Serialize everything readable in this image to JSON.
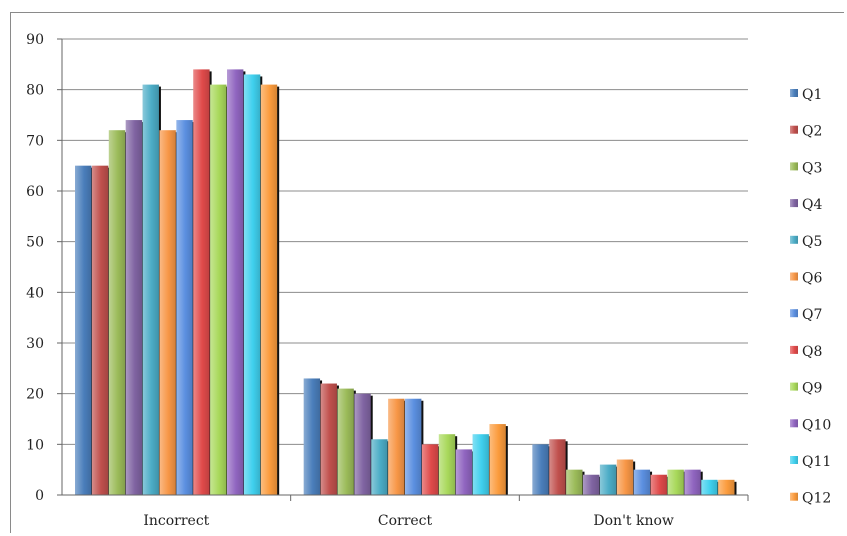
{
  "chart_data": {
    "type": "bar",
    "categories": [
      "Incorrect",
      "Correct",
      "Don't know"
    ],
    "series": [
      {
        "name": "Q1",
        "color": "#4a7ebb",
        "values": [
          65,
          23,
          10
        ]
      },
      {
        "name": "Q2",
        "color": "#c0504d",
        "values": [
          65,
          22,
          11
        ]
      },
      {
        "name": "Q3",
        "color": "#9bbb59",
        "values": [
          72,
          21,
          5
        ]
      },
      {
        "name": "Q4",
        "color": "#8064a2",
        "values": [
          74,
          20,
          4
        ]
      },
      {
        "name": "Q5",
        "color": "#4bacc6",
        "values": [
          81,
          11,
          6
        ]
      },
      {
        "name": "Q6",
        "color": "#f79646",
        "values": [
          72,
          19,
          7
        ]
      },
      {
        "name": "Q7",
        "color": "#5b8fe0",
        "values": [
          74,
          19,
          5
        ]
      },
      {
        "name": "Q8",
        "color": "#e04a4a",
        "values": [
          84,
          10,
          4
        ]
      },
      {
        "name": "Q9",
        "color": "#a8d85a",
        "values": [
          81,
          12,
          5
        ]
      },
      {
        "name": "Q10",
        "color": "#9065c0",
        "values": [
          84,
          9,
          5
        ]
      },
      {
        "name": "Q11",
        "color": "#3fd0ee",
        "values": [
          83,
          12,
          3
        ]
      },
      {
        "name": "Q12",
        "color": "#fb9b3c",
        "values": [
          81,
          14,
          3
        ]
      }
    ],
    "ylim": [
      0,
      90
    ],
    "yticks": [
      "0",
      "10",
      "20",
      "30",
      "40",
      "50",
      "60",
      "70",
      "80",
      "90"
    ],
    "grid": true,
    "legend_position": "right",
    "title": "",
    "xlabel": "",
    "ylabel": ""
  }
}
